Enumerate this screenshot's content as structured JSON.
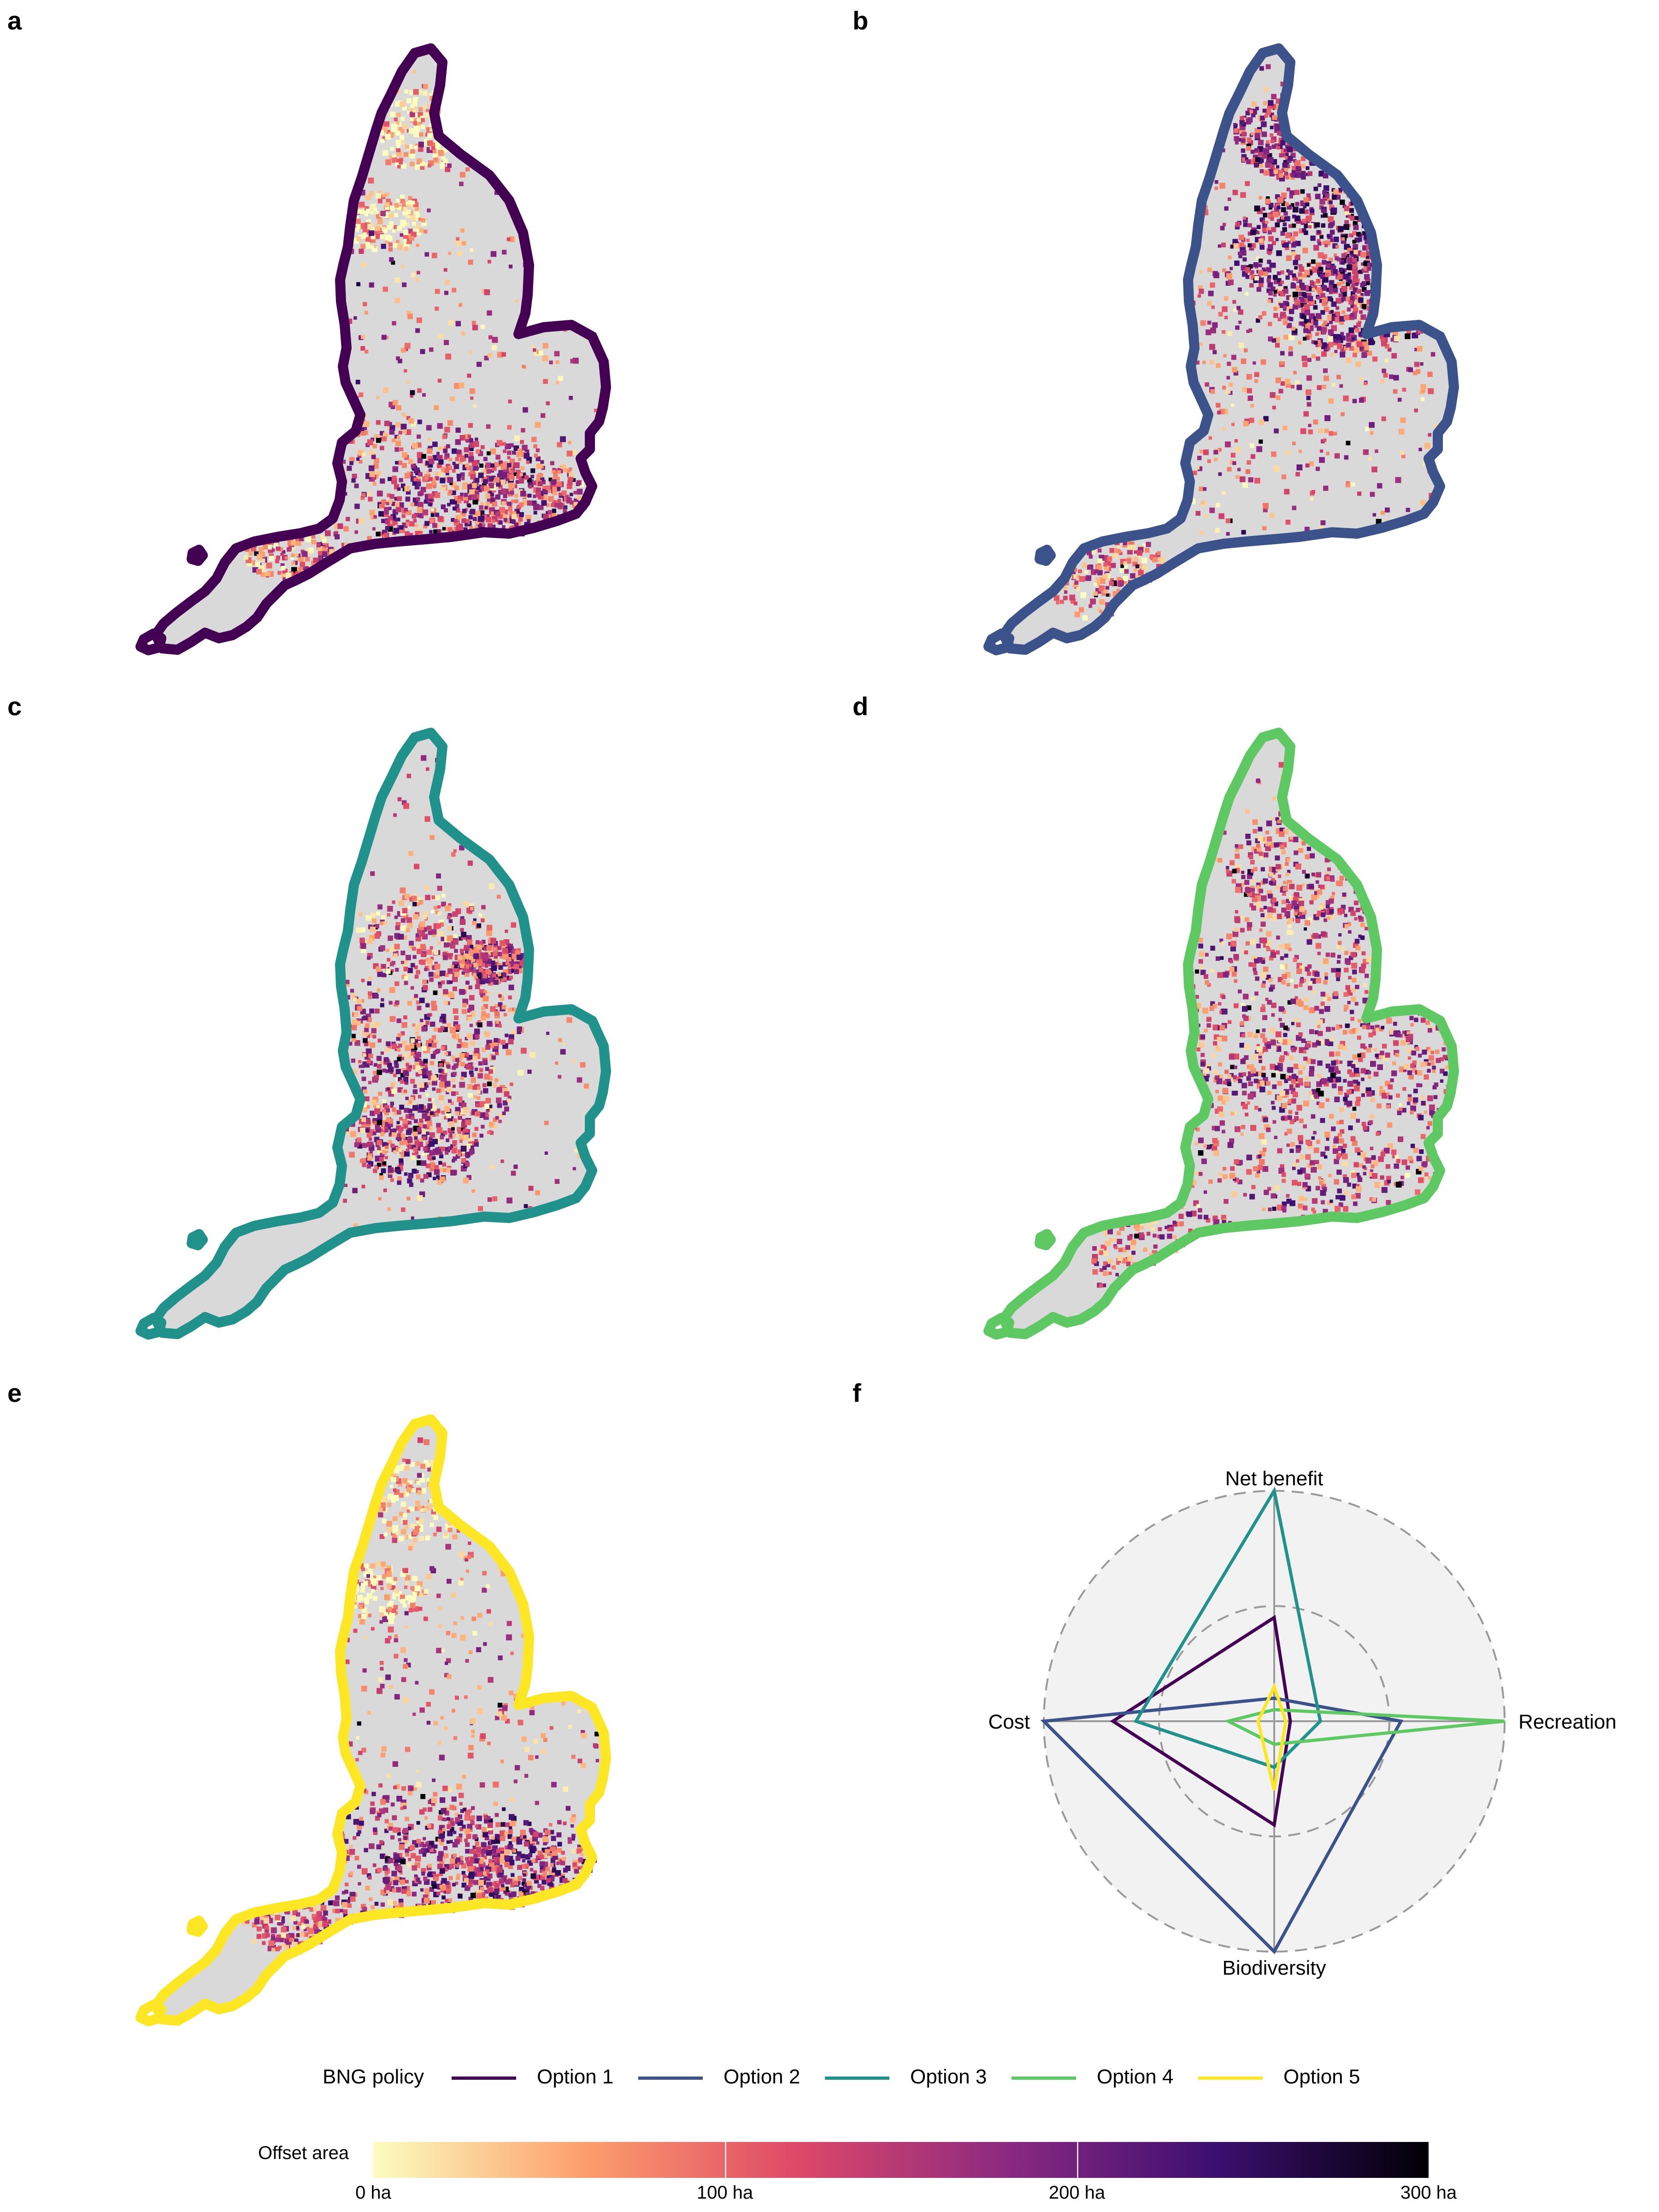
{
  "panel_letters": [
    "a",
    "b",
    "c",
    "d",
    "e",
    "f"
  ],
  "maps": [
    {
      "panel": "a",
      "outline_color": "#440154"
    },
    {
      "panel": "b",
      "outline_color": "#3b528b"
    },
    {
      "panel": "c",
      "outline_color": "#21918c"
    },
    {
      "panel": "d",
      "outline_color": "#5ec962"
    },
    {
      "panel": "e",
      "outline_color": "#fde725"
    }
  ],
  "chart_data": {
    "type": "radar",
    "axes": [
      "Net benefit",
      "Recreation",
      "Biodiversity",
      "Cost"
    ],
    "series": [
      {
        "name": "Option 1",
        "color": "#440154",
        "values": [
          0.45,
          0.07,
          0.45,
          0.7
        ]
      },
      {
        "name": "Option 2",
        "color": "#3b528b",
        "values": [
          0.1,
          0.55,
          1.0,
          1.0
        ]
      },
      {
        "name": "Option 3",
        "color": "#21918c",
        "values": [
          1.0,
          0.2,
          0.2,
          0.6
        ]
      },
      {
        "name": "Option 4",
        "color": "#5ec962",
        "values": [
          0.05,
          1.0,
          0.1,
          0.2
        ]
      },
      {
        "name": "Option 5",
        "color": "#fde725",
        "values": [
          0.15,
          0.05,
          0.3,
          0.07
        ]
      }
    ],
    "grid_circles": [
      0.5,
      1.0
    ],
    "legend_title": "BNG policy",
    "colorbar": {
      "title": "Offset area",
      "ticks": [
        "0 ha",
        "100 ha",
        "200 ha",
        "300 ha"
      ],
      "range": [
        0,
        300
      ],
      "colors": [
        "#fcfdbf",
        "#fd9f6c",
        "#de4968",
        "#8c2981",
        "#3b0f70",
        "#000004"
      ]
    }
  }
}
